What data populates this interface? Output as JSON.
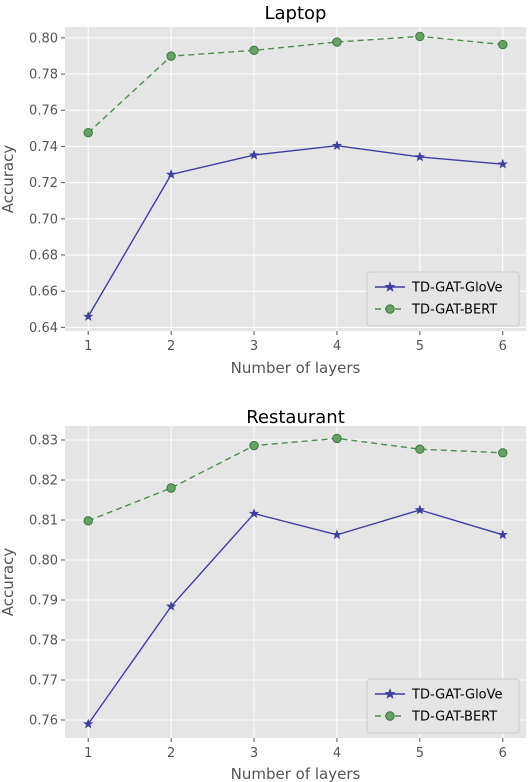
{
  "chart_data": [
    {
      "type": "line",
      "title": "Laptop",
      "xlabel": "Number of layers",
      "ylabel": "Accuracy",
      "x": [
        1,
        2,
        3,
        4,
        5,
        6
      ],
      "ylim": [
        0.638,
        0.806
      ],
      "yticks": [
        "0.64",
        "0.66",
        "0.68",
        "0.70",
        "0.72",
        "0.74",
        "0.76",
        "0.78",
        "0.80"
      ],
      "xticks": [
        "1",
        "2",
        "3",
        "4",
        "5",
        "6"
      ],
      "grid": true,
      "legend_position": "lower-right",
      "series": [
        {
          "name": "TD-GAT-GloVe",
          "values": [
            0.646,
            0.7245,
            0.7352,
            0.7404,
            0.7342,
            0.7302
          ],
          "color": "#3f3f9f",
          "marker": "star",
          "dash": "solid"
        },
        {
          "name": "TD-GAT-BERT",
          "values": [
            0.7476,
            0.7899,
            0.7931,
            0.7977,
            0.8008,
            0.7963
          ],
          "color": "#4f8f4f",
          "marker": "circle",
          "dash": "dashed"
        }
      ]
    },
    {
      "type": "line",
      "title": "Restaurant",
      "xlabel": "Number of layers",
      "ylabel": "Accuracy",
      "x": [
        1,
        2,
        3,
        4,
        5,
        6
      ],
      "ylim": [
        0.7555,
        0.8335
      ],
      "yticks": [
        "0.76",
        "0.77",
        "0.78",
        "0.79",
        "0.80",
        "0.81",
        "0.82",
        "0.83"
      ],
      "xticks": [
        "1",
        "2",
        "3",
        "4",
        "5",
        "6"
      ],
      "grid": true,
      "legend_position": "lower-right",
      "series": [
        {
          "name": "TD-GAT-GloVe",
          "values": [
            0.759,
            0.7884,
            0.8116,
            0.8063,
            0.8125,
            0.8063
          ],
          "color": "#3f3f9f",
          "marker": "star",
          "dash": "solid"
        },
        {
          "name": "TD-GAT-BERT",
          "values": [
            0.8098,
            0.818,
            0.8286,
            0.8304,
            0.8277,
            0.8268
          ],
          "color": "#4f8f4f",
          "marker": "circle",
          "dash": "dashed"
        }
      ]
    }
  ]
}
